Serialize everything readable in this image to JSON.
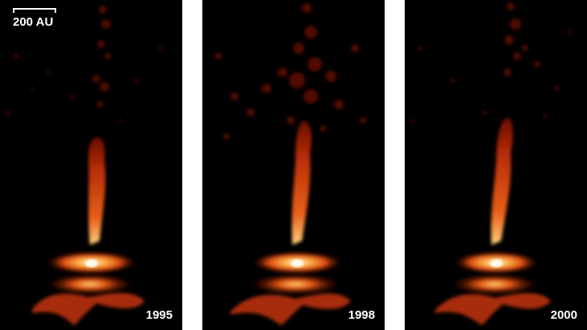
{
  "scale_bar": {
    "label": "200 AU"
  },
  "panels": [
    {
      "year": "1995"
    },
    {
      "year": "1998"
    },
    {
      "year": "2000"
    }
  ],
  "colors": {
    "background": "#000000",
    "jet_dark": "#6a0c00",
    "jet_mid": "#c8330a",
    "jet_bright": "#ff8a2a",
    "core": "#fff4d6"
  }
}
